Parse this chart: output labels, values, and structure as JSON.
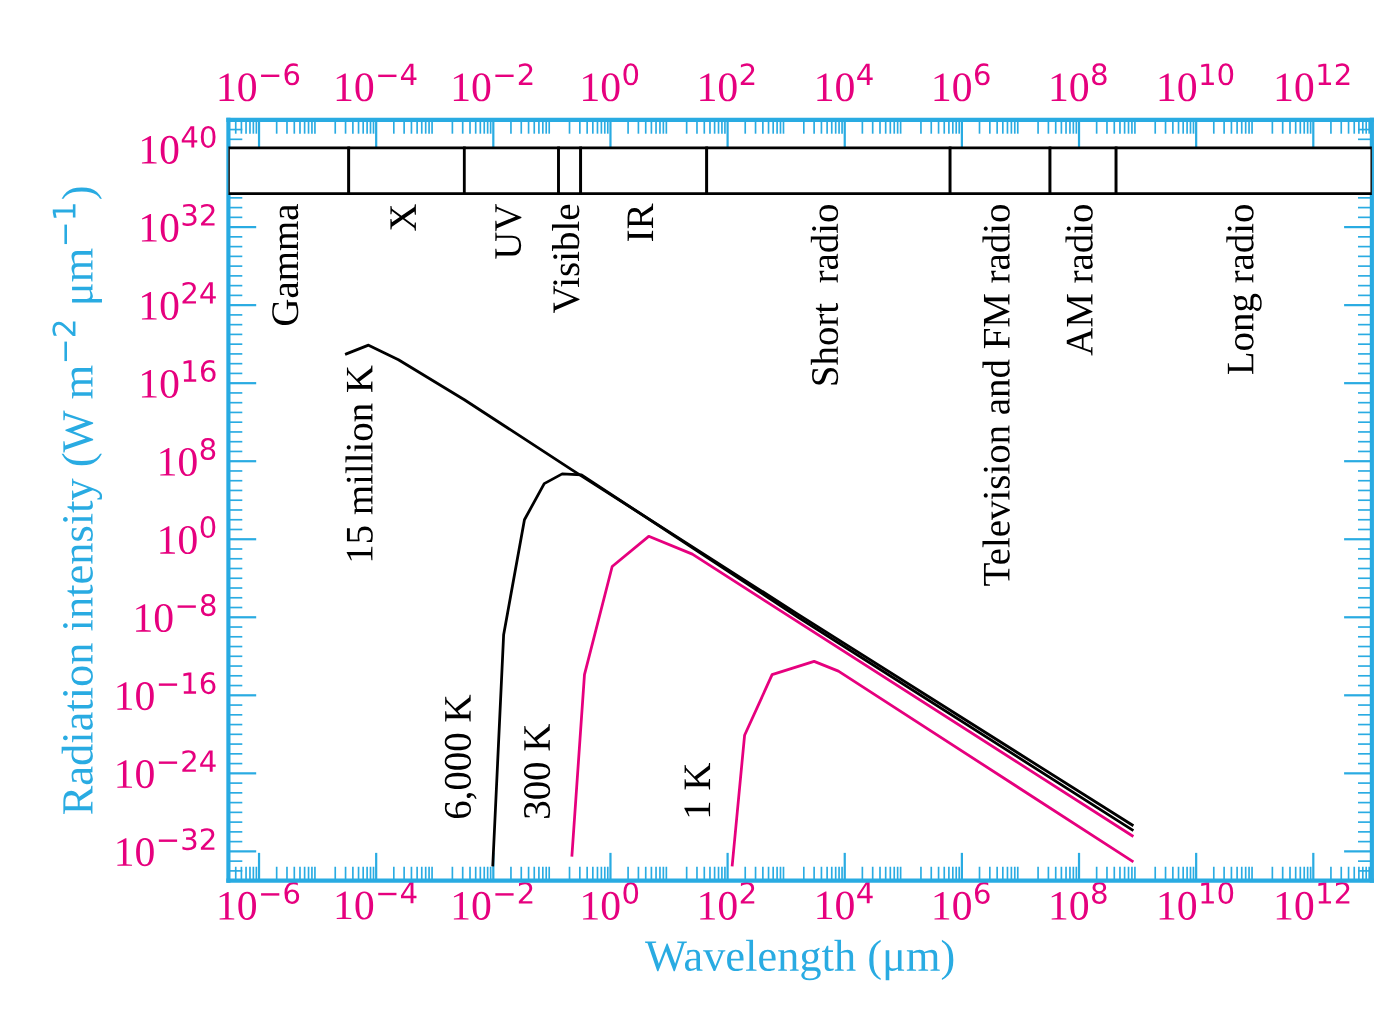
{
  "chart_data": {
    "type": "line",
    "xlabel": "Wavelength (μm)",
    "ylabel": "Radiation intensity (W m$^{−2}$ μm$^{−1}$)",
    "log": "xy",
    "grid": false,
    "legend": false,
    "marker": "none",
    "line_style": "solid",
    "xlim": [
      3e-07,
      10000000000000.0
    ],
    "ylim": [
      1e-35,
      1e+43
    ],
    "xticks": [
      {
        "value": 1e-06,
        "label": "10$^{−6}$"
      },
      {
        "value": 0.0001,
        "label": "10$^{−4}$"
      },
      {
        "value": 0.01,
        "label": "10$^{−2}$"
      },
      {
        "value": 1,
        "label": "10$^{0}$"
      },
      {
        "value": 100.0,
        "label": "10$^{2}$"
      },
      {
        "value": 10000.0,
        "label": "10$^{4}$"
      },
      {
        "value": 1000000.0,
        "label": "10$^{6}$"
      },
      {
        "value": 100000000.0,
        "label": "10$^{8}$"
      },
      {
        "value": 10000000000.0,
        "label": "10$^{10}$"
      },
      {
        "value": 1000000000000.0,
        "label": "10$^{12}$"
      }
    ],
    "yticks": [
      {
        "value": 1e+40,
        "label": "10$^{40}$"
      },
      {
        "value": 1e+32,
        "label": "10$^{32}$"
      },
      {
        "value": 1e+24,
        "label": "10$^{24}$"
      },
      {
        "value": 1e+16,
        "label": "10$^{16}$"
      },
      {
        "value": 100000000.0,
        "label": "10$^{8}$"
      },
      {
        "value": 1,
        "label": "10$^{0}$"
      },
      {
        "value": 1e-08,
        "label": "10$^{−8}$"
      },
      {
        "value": 1e-16,
        "label": "10$^{−16}$"
      },
      {
        "value": 1e-24,
        "label": "10$^{−24}$"
      },
      {
        "value": 1e-32,
        "label": "10$^{−32}$"
      }
    ],
    "series": [
      {
        "name": "15 million K",
        "color": "#000000",
        "x": [
          3.1e-05,
          7.4e-05,
          0.00024,
          0.0032,
          0.22,
          1600,
          810000000.0
        ],
        "values": [
          1e+19,
          7.9e+19,
          2.5e+18,
          200000000000000.0,
          13000000.0,
          2e-08,
          5e-30
        ]
      },
      {
        "name": "6,000 K",
        "color": "#000000",
        "x": [
          0.0098,
          0.015,
          0.034,
          0.074,
          0.15,
          0.32,
          1600,
          810000000.0
        ],
        "values": [
          4e-34,
          1.6e-10,
          100,
          500000.0,
          5000000.0,
          4000000.0,
          1e-08,
          1.6e-30
        ]
      },
      {
        "name": "300 K",
        "color": "#e6007e",
        "x": [
          0.22,
          0.36,
          1.07,
          4.5,
          25,
          430,
          810000000.0
        ],
        "values": [
          4e-33,
          1.3e-14,
          0.0016,
          2,
          0.03,
          5e-07,
          4e-31
        ]
      },
      {
        "name": "1 K",
        "color": "#e6007e",
        "x": [
          120,
          195,
          575,
          3000,
          7800,
          810000000.0
        ],
        "values": [
          4e-34,
          8e-21,
          1.3e-14,
          3e-13,
          3e-14,
          1e-33
        ]
      }
    ],
    "bands": [
      {
        "axis": "x",
        "from": 3e-07,
        "to": 3.4e-05,
        "label": "Gamma"
      },
      {
        "axis": "x",
        "from": 3.4e-05,
        "to": 0.0032,
        "label": "X"
      },
      {
        "axis": "x",
        "from": 0.0032,
        "to": 0.13,
        "label": "UV"
      },
      {
        "axis": "x",
        "from": 0.13,
        "to": 0.31,
        "label": "Visible"
      },
      {
        "axis": "x",
        "from": 0.31,
        "to": 44,
        "label": "IR"
      },
      {
        "axis": "x",
        "from": 44,
        "to": 630000.0,
        "label": "Short  radio"
      },
      {
        "axis": "x",
        "from": 630000.0,
        "to": 32000000.0,
        "label": "Television and FM radio"
      },
      {
        "axis": "x",
        "from": 32000000.0,
        "to": 430000000.0,
        "label": "AM radio"
      },
      {
        "axis": "x",
        "from": 430000000.0,
        "to": 10000000000000.0,
        "label": "Long radio"
      }
    ]
  }
}
